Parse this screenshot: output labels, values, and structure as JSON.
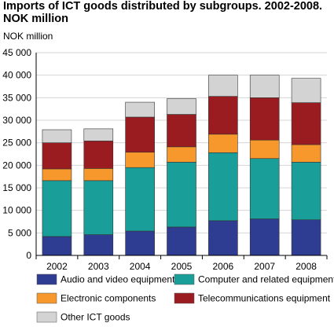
{
  "chart_data": {
    "type": "bar",
    "stacked": true,
    "title": "Imports of ICT goods distributed by subgroups. 2002-2008. NOK million",
    "ylabel": "NOK million",
    "xlabel": "",
    "categories": [
      "2002",
      "2003",
      "2004",
      "2005",
      "2006",
      "2007",
      "2008"
    ],
    "ylim": [
      0,
      45000
    ],
    "yticks": [
      0,
      5000,
      10000,
      15000,
      20000,
      25000,
      30000,
      35000,
      40000,
      45000
    ],
    "ytick_labels": [
      "0",
      "5 000",
      "10 000",
      "15 000",
      "20 000",
      "25 000",
      "30 000",
      "35 000",
      "40 000",
      "45 000"
    ],
    "grid": true,
    "legend_position": "bottom",
    "series": [
      {
        "name": "Audio and video equipment",
        "color": "#2e3d91",
        "values": [
          4200,
          4600,
          5400,
          6300,
          7700,
          8100,
          7900
        ]
      },
      {
        "name": "Computer and related equipment",
        "color": "#1a9e99",
        "values": [
          12400,
          12000,
          14100,
          14400,
          15100,
          13400,
          12800
        ]
      },
      {
        "name": "Electronic components",
        "color": "#f7982d",
        "values": [
          2600,
          2700,
          3400,
          3400,
          4100,
          4100,
          3900
        ]
      },
      {
        "name": "Telecommunications equipment",
        "color": "#9b1c20",
        "values": [
          5800,
          6100,
          7800,
          7200,
          8400,
          9400,
          9300
        ]
      },
      {
        "name": "Other ICT goods",
        "color": "#d3d3d3",
        "values": [
          2900,
          2700,
          3300,
          3500,
          4700,
          5000,
          5400
        ]
      }
    ]
  }
}
